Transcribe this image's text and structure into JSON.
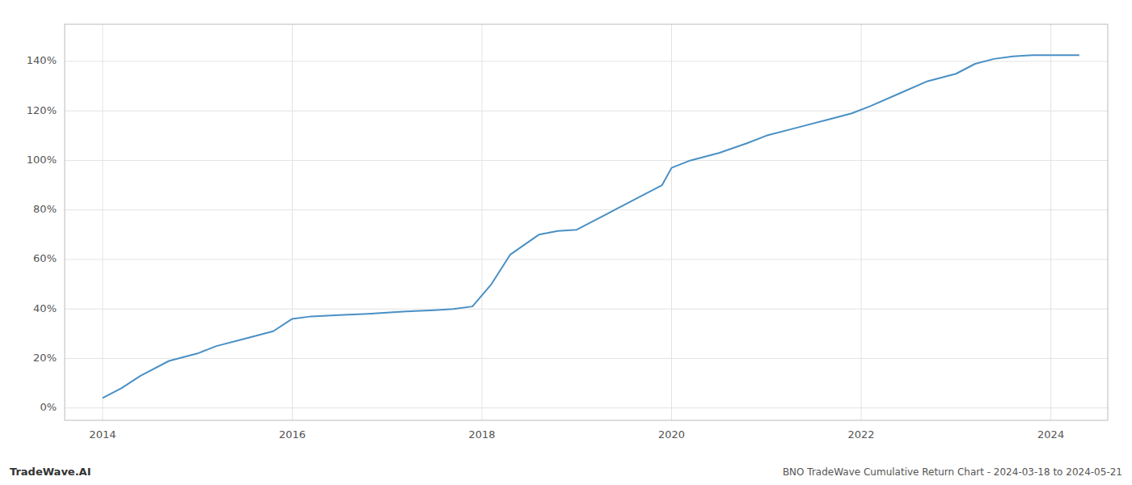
{
  "chart_data": {
    "type": "line",
    "title": "BNO TradeWave Cumulative Return Chart - 2024-03-18 to 2024-05-21",
    "annotations": [
      "TradeWave.AI"
    ],
    "color": "#4a90c4",
    "grid": true,
    "x": [
      2014.0,
      2014.2,
      2014.4,
      2014.7,
      2015.0,
      2015.2,
      2015.5,
      2015.8,
      2016.0,
      2016.2,
      2016.5,
      2016.8,
      2017.0,
      2017.2,
      2017.5,
      2017.7,
      2017.9,
      2018.1,
      2018.3,
      2018.6,
      2018.8,
      2019.0,
      2019.3,
      2019.6,
      2019.9,
      2020.0,
      2020.2,
      2020.5,
      2020.8,
      2021.0,
      2021.3,
      2021.6,
      2021.9,
      2022.1,
      2022.4,
      2022.7,
      2023.0,
      2023.2,
      2023.4,
      2023.6,
      2023.8,
      2024.0,
      2024.3
    ],
    "values": [
      4,
      8,
      13,
      19,
      22,
      25,
      28,
      31,
      36,
      37,
      37.5,
      38,
      38.5,
      39,
      39.5,
      40,
      41,
      50,
      62,
      70,
      71.5,
      72,
      78,
      84,
      90,
      97,
      100,
      103,
      107,
      110,
      113,
      116,
      119,
      122,
      127,
      132,
      135,
      139,
      141,
      142,
      142.5,
      142.5,
      142.5
    ],
    "xlim": [
      2013.6,
      2024.6
    ],
    "ylim": [
      -5,
      155
    ],
    "xticks": [
      2014,
      2016,
      2018,
      2020,
      2022,
      2024
    ],
    "yticks": [
      {
        "value": 0,
        "label": "0%"
      },
      {
        "value": 20,
        "label": "20%"
      },
      {
        "value": 40,
        "label": "40%"
      },
      {
        "value": 60,
        "label": "60%"
      },
      {
        "value": 80,
        "label": "80%"
      },
      {
        "value": 100,
        "label": "100%"
      },
      {
        "value": 120,
        "label": "120%"
      },
      {
        "value": 140,
        "label": "140%"
      }
    ]
  }
}
